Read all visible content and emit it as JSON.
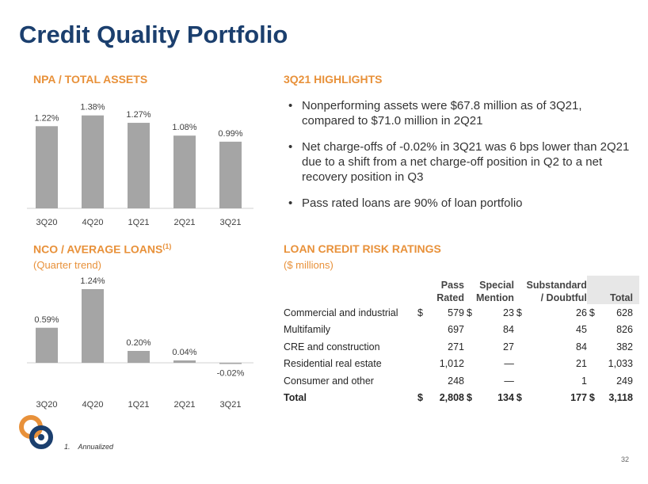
{
  "page": {
    "title": "Credit Quality Portfolio",
    "page_number": "32"
  },
  "footnote": {
    "number": "1.",
    "text": "Annualized"
  },
  "npa_section": {
    "title": "NPA / TOTAL ASSETS"
  },
  "nco_section": {
    "title": "NCO / AVERAGE LOANS",
    "superscript": "(1)",
    "subtitle": "(Quarter trend)"
  },
  "highlights": {
    "title": "3Q21 HIGHLIGHTS",
    "bullet_char": "•",
    "items": [
      "Nonperforming assets were $67.8 million as of 3Q21, compared to $71.0 million in 2Q21",
      "Net charge-offs of -0.02% in 3Q21 was 6 bps lower than 2Q21 due to a shift from a net charge-off position in Q2 to a net recovery position in Q3",
      "Pass rated loans are 90% of loan portfolio"
    ]
  },
  "risk_table": {
    "title": "LOAN CREDIT RISK RATINGS",
    "subtitle": "($ millions)",
    "headers": {
      "pass_1": "Pass",
      "pass_2": "Rated",
      "special_1": "Special",
      "special_2": "Mention",
      "sub_1": "Substandard",
      "sub_2": "/ Doubtful",
      "total": "Total"
    },
    "rows": [
      {
        "label": "Commercial and industrial",
        "d1": "$",
        "pass": "579",
        "d2": "$",
        "special": "23",
        "d3": "$",
        "sub": "26",
        "d4": "$",
        "total": "628"
      },
      {
        "label": "Multifamily",
        "d1": "",
        "pass": "697",
        "d2": "",
        "special": "84",
        "d3": "",
        "sub": "45",
        "d4": "",
        "total": "826"
      },
      {
        "label": "CRE and construction",
        "d1": "",
        "pass": "271",
        "d2": "",
        "special": "27",
        "d3": "",
        "sub": "84",
        "d4": "",
        "total": "382"
      },
      {
        "label": "Residential real estate",
        "d1": "",
        "pass": "1,012",
        "d2": "",
        "special": "—",
        "d3": "",
        "sub": "21",
        "d4": "",
        "total": "1,033"
      },
      {
        "label": "Consumer and other",
        "d1": "",
        "pass": "248",
        "d2": "",
        "special": "—",
        "d3": "",
        "sub": "1",
        "d4": "",
        "total": "249"
      },
      {
        "label": "Total",
        "d1": "$",
        "pass": "2,808",
        "d2": "$",
        "special": "134",
        "d3": "$",
        "sub": "177",
        "d4": "$",
        "total": "3,118"
      }
    ]
  },
  "colors": {
    "bar": "#a5a5a5",
    "accent": "#e8913a",
    "title": "#1b3f6e",
    "logo_blue": "#1b3f6e",
    "logo_orange": "#e8913a"
  },
  "chart_data": [
    {
      "type": "bar",
      "title": "NPA / TOTAL ASSETS",
      "categories": [
        "3Q20",
        "4Q20",
        "1Q21",
        "2Q21",
        "3Q21"
      ],
      "values": [
        1.22,
        1.38,
        1.27,
        1.08,
        0.99
      ],
      "labels": [
        "1.22%",
        "1.38%",
        "1.27%",
        "1.08%",
        "0.99%"
      ],
      "ylim": [
        0,
        1.6
      ],
      "xlabel": "",
      "ylabel": ""
    },
    {
      "type": "bar",
      "title": "NCO / AVERAGE LOANS",
      "categories": [
        "3Q20",
        "4Q20",
        "1Q21",
        "2Q21",
        "3Q21"
      ],
      "values": [
        0.59,
        1.24,
        0.2,
        0.04,
        -0.02
      ],
      "labels": [
        "0.59%",
        "1.24%",
        "0.20%",
        "0.04%",
        "-0.02%"
      ],
      "ylim": [
        -0.2,
        1.4
      ],
      "xlabel": "",
      "ylabel": ""
    }
  ]
}
